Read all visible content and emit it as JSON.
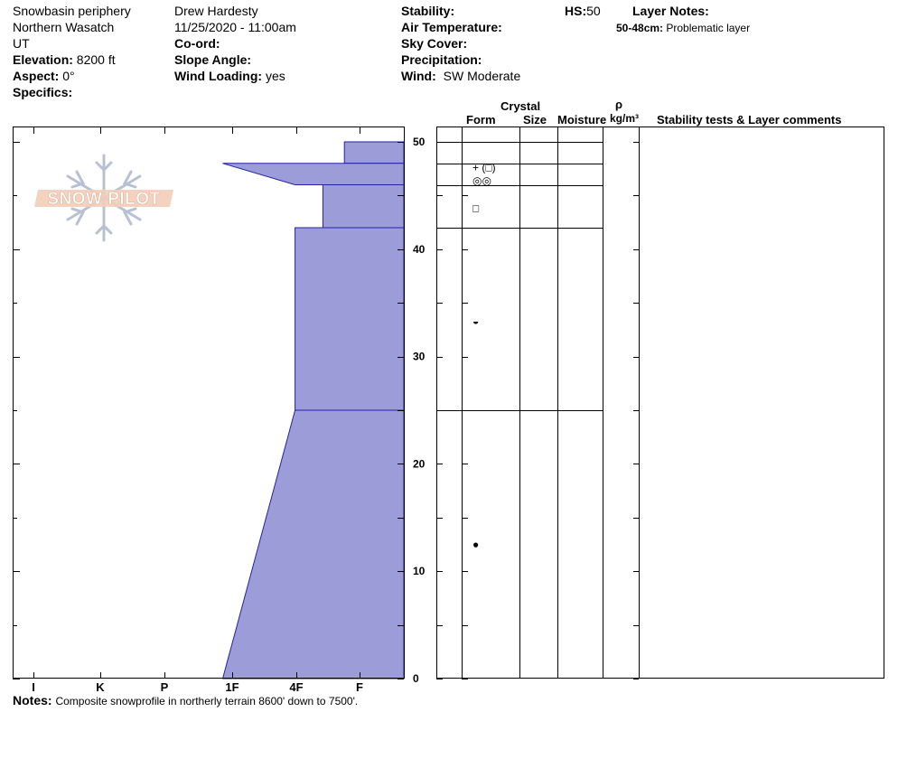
{
  "location": {
    "name": "Snowbasin periphery",
    "range": "Northern Wasatch",
    "state": "UT",
    "elevation_label": "Elevation:",
    "elevation_value": "8200 ft",
    "aspect_label": "Aspect:",
    "aspect_value": "0°",
    "specifics_label": "Specifics:"
  },
  "observer": {
    "name": "Drew Hardesty",
    "datetime": "11/25/2020 - 11:00am",
    "coord_label": "Co-ord:",
    "slope_label": "Slope Angle:",
    "wind_loading_label": "Wind Loading:",
    "wind_loading_value": "yes"
  },
  "conditions": {
    "stability_label": "Stability:",
    "air_temp_label": "Air Temperature:",
    "sky_cover_label": "Sky Cover:",
    "precip_label": "Precipitation:",
    "wind_label": "Wind:",
    "wind_value": "SW Moderate"
  },
  "hs": {
    "label": "HS:",
    "value": "50"
  },
  "layer_notes": {
    "title": "Layer Notes:",
    "items": [
      {
        "range": "50-48cm:",
        "text": "Problematic layer"
      }
    ]
  },
  "logo": {
    "text": "SNOW PILOT"
  },
  "columns": {
    "crystal": "Crystal",
    "form": "Form",
    "size": "Size",
    "moisture": "Moisture",
    "density_symbol": "ρ",
    "density_units": "kg/m³",
    "stability": "Stability tests & Layer comments"
  },
  "notes": {
    "label": "Notes:",
    "text": "Composite snowprofile in northerly terrain 8600' down to 7500'."
  },
  "chart_data": {
    "type": "area",
    "hardness_axis": [
      "I",
      "K",
      "P",
      "1F",
      "4F",
      "F"
    ],
    "hardness_axis_order_note": "",
    "depth_axis": {
      "min": 0,
      "max": 50,
      "ticks": [
        0,
        10,
        20,
        30,
        40,
        50
      ]
    },
    "layers": [
      {
        "top": 50,
        "bottom": 48,
        "hardness_top": 4.76,
        "hardness_bottom": 4.76
      },
      {
        "top": 48,
        "bottom": 46,
        "hardness_top": 2.86,
        "hardness_bottom": 3.98
      },
      {
        "top": 46,
        "bottom": 42,
        "hardness_top": 4.42,
        "hardness_bottom": 4.42
      },
      {
        "top": 42,
        "bottom": 25,
        "hardness_top": 3.98,
        "hardness_bottom": 3.98
      },
      {
        "top": 25,
        "bottom": 0,
        "hardness_top": 3.98,
        "hardness_bottom": 2.86
      }
    ],
    "grain_form_depths": [
      {
        "depth": 47.6,
        "symbol": "+ (□)"
      },
      {
        "depth": 46.4,
        "symbol": "◎◎"
      },
      {
        "depth": 43.8,
        "symbol": "□"
      },
      {
        "depth": 33.3,
        "symbol": "◒"
      },
      {
        "depth": 12.5,
        "symbol": "●"
      }
    ],
    "fill_color": "#9c9cd8",
    "stroke_color": "#2222aa"
  }
}
